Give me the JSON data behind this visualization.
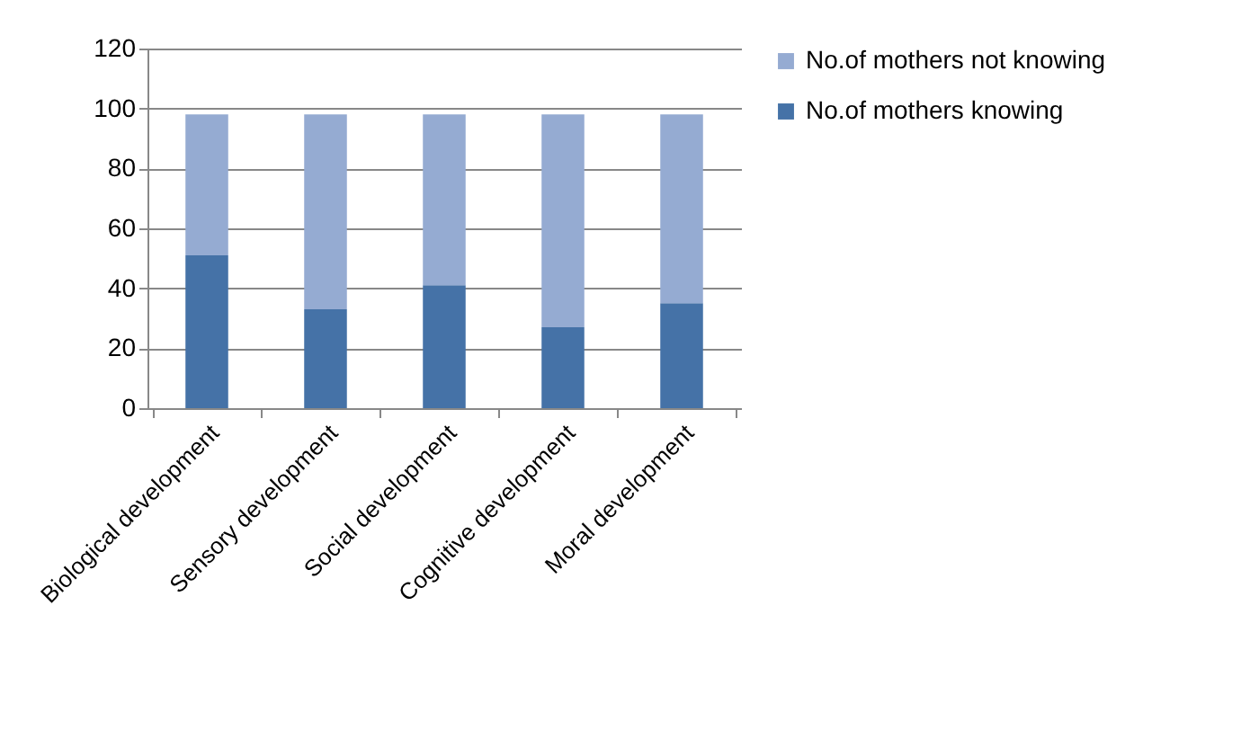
{
  "chart_data": {
    "type": "bar",
    "stacked": true,
    "categories": [
      "Biological development",
      "Sensory development",
      "Social development",
      "Cognitive development",
      "Moral development"
    ],
    "series": [
      {
        "name": "No.of mothers knowing",
        "color": "#4572a7",
        "values": [
          51,
          33,
          41,
          27,
          35
        ]
      },
      {
        "name": "No.of mothers not knowing",
        "color": "#95abd2",
        "values": [
          47,
          65,
          57,
          71,
          63
        ]
      }
    ],
    "ylim": [
      0,
      120
    ],
    "yticks": [
      0,
      20,
      40,
      60,
      80,
      100,
      120
    ],
    "grid": "y",
    "legend": "right"
  }
}
